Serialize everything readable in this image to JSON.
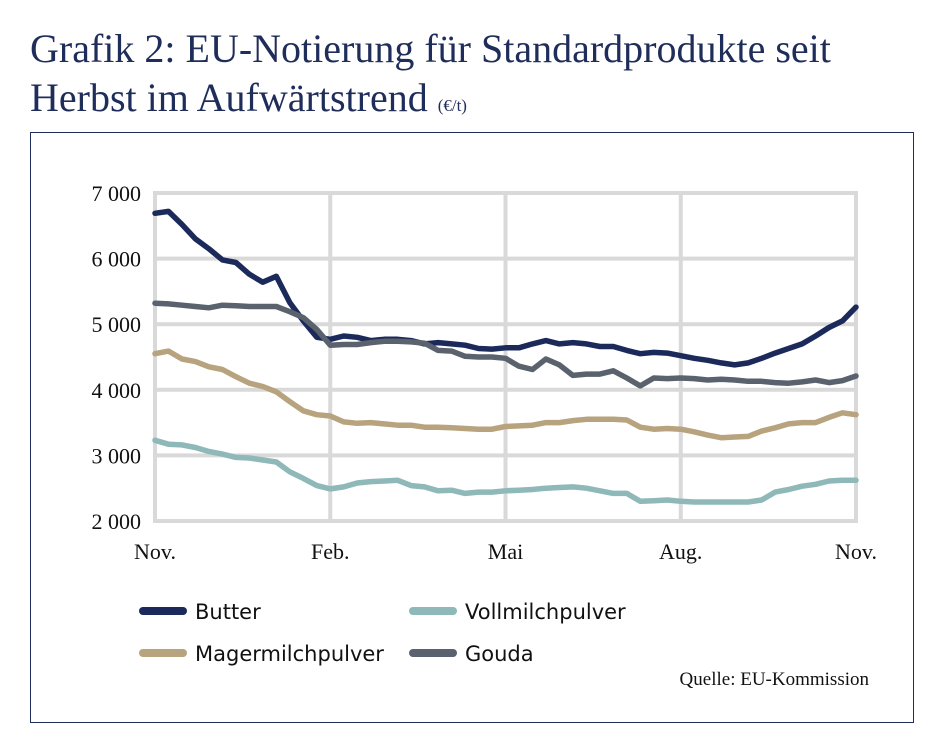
{
  "title_main": "Grafik 2: EU-Notierung für Standardprodukte seit Herbst im Aufwärtstrend",
  "title_unit": "(€/t)",
  "source": "Quelle: EU-Kommission",
  "chart_data": {
    "type": "line",
    "ylim": [
      2000,
      7000
    ],
    "yticks": [
      2000,
      3000,
      4000,
      5000,
      6000,
      7000
    ],
    "ytick_labels": [
      "2 000",
      "3 000",
      "4 000",
      "5 000",
      "6 000",
      "7 000"
    ],
    "xtick_labels": [
      "Nov.",
      "Feb.",
      "Mai",
      "Aug.",
      "Nov."
    ],
    "xtick_positions": [
      0,
      13,
      26,
      39,
      52
    ],
    "x_count": 53,
    "grid": true,
    "legend": "bottom",
    "series": [
      {
        "name": "Butter",
        "color": "#1b2a5a",
        "values": [
          6690,
          6720,
          6520,
          6300,
          6150,
          5980,
          5940,
          5760,
          5640,
          5730,
          5330,
          5050,
          4800,
          4770,
          4820,
          4800,
          4750,
          4770,
          4770,
          4750,
          4700,
          4720,
          4700,
          4680,
          4630,
          4620,
          4640,
          4640,
          4700,
          4750,
          4700,
          4720,
          4700,
          4660,
          4660,
          4600,
          4550,
          4570,
          4560,
          4520,
          4480,
          4450,
          4410,
          4380,
          4410,
          4480,
          4560,
          4630,
          4700,
          4820,
          4950,
          5050,
          5260
        ]
      },
      {
        "name": "Vollmilchpulver",
        "color": "#8fb8b8",
        "values": [
          3230,
          3170,
          3160,
          3120,
          3060,
          3020,
          2970,
          2960,
          2930,
          2900,
          2750,
          2650,
          2540,
          2490,
          2520,
          2580,
          2600,
          2610,
          2620,
          2540,
          2520,
          2460,
          2470,
          2420,
          2440,
          2440,
          2460,
          2470,
          2480,
          2500,
          2510,
          2520,
          2500,
          2460,
          2420,
          2420,
          2300,
          2310,
          2320,
          2300,
          2290,
          2290,
          2290,
          2290,
          2290,
          2320,
          2440,
          2480,
          2530,
          2560,
          2610,
          2620,
          2620
        ]
      },
      {
        "name": "Magermilchpulver",
        "color": "#b8a37f",
        "values": [
          4550,
          4590,
          4470,
          4430,
          4350,
          4310,
          4200,
          4100,
          4050,
          3970,
          3820,
          3680,
          3620,
          3600,
          3510,
          3490,
          3500,
          3480,
          3460,
          3460,
          3430,
          3430,
          3420,
          3410,
          3400,
          3400,
          3440,
          3450,
          3460,
          3500,
          3500,
          3530,
          3550,
          3550,
          3550,
          3540,
          3430,
          3400,
          3410,
          3400,
          3360,
          3310,
          3270,
          3280,
          3290,
          3370,
          3420,
          3480,
          3500,
          3500,
          3580,
          3650,
          3620
        ]
      },
      {
        "name": "Gouda",
        "color": "#5a626d",
        "values": [
          5320,
          5310,
          5290,
          5270,
          5250,
          5290,
          5280,
          5270,
          5270,
          5270,
          5190,
          5100,
          4920,
          4680,
          4690,
          4690,
          4720,
          4740,
          4740,
          4730,
          4710,
          4600,
          4590,
          4510,
          4500,
          4500,
          4480,
          4360,
          4310,
          4470,
          4380,
          4220,
          4240,
          4240,
          4290,
          4180,
          4060,
          4180,
          4170,
          4180,
          4170,
          4150,
          4160,
          4150,
          4130,
          4130,
          4110,
          4100,
          4120,
          4150,
          4110,
          4140,
          4210
        ]
      }
    ]
  }
}
